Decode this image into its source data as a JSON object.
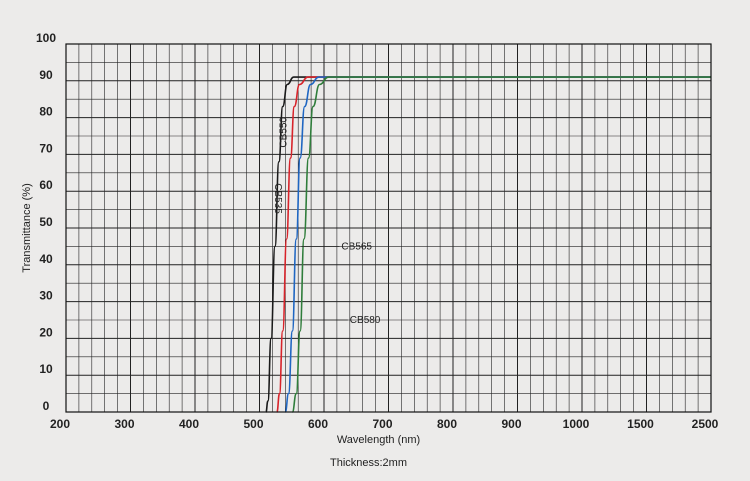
{
  "chart_data": {
    "type": "line",
    "xlabel": "Wavelength (nm)",
    "ylabel": "Transmittance (%)",
    "note": "Thickness:2mm",
    "x_ticks": [
      "200",
      "300",
      "400",
      "500",
      "600",
      "700",
      "800",
      "900",
      "1000",
      "1500",
      "2500"
    ],
    "y_ticks": [
      "0",
      "10",
      "20",
      "30",
      "40",
      "50",
      "60",
      "70",
      "80",
      "90",
      "100"
    ],
    "ylim": [
      0,
      100
    ],
    "grid": true,
    "series": [
      {
        "name": "CB535",
        "color": "#1a1a1a",
        "points": [
          [
            510,
            0
          ],
          [
            513,
            3
          ],
          [
            518,
            20
          ],
          [
            524,
            45
          ],
          [
            530,
            68
          ],
          [
            536,
            83
          ],
          [
            543,
            89
          ],
          [
            553,
            91
          ],
          [
            600,
            91
          ],
          [
            1000,
            91
          ],
          [
            2500,
            91
          ]
        ]
      },
      {
        "name": "CB550",
        "color": "#d8232a",
        "points": [
          [
            527,
            0
          ],
          [
            531,
            5
          ],
          [
            536,
            22
          ],
          [
            542,
            47
          ],
          [
            548,
            69
          ],
          [
            554,
            83
          ],
          [
            562,
            89
          ],
          [
            575,
            91
          ],
          [
            620,
            91
          ],
          [
            1000,
            91
          ],
          [
            2500,
            91
          ]
        ]
      },
      {
        "name": "CB565",
        "color": "#1f66c2",
        "points": [
          [
            540,
            0
          ],
          [
            545,
            5
          ],
          [
            551,
            22
          ],
          [
            557,
            47
          ],
          [
            563,
            69
          ],
          [
            570,
            83
          ],
          [
            579,
            89
          ],
          [
            592,
            91
          ],
          [
            640,
            91
          ],
          [
            1000,
            91
          ],
          [
            2500,
            91
          ]
        ]
      },
      {
        "name": "CB580",
        "color": "#2f7d3b",
        "points": [
          [
            551,
            0
          ],
          [
            557,
            5
          ],
          [
            563,
            22
          ],
          [
            569,
            47
          ],
          [
            576,
            69
          ],
          [
            583,
            83
          ],
          [
            593,
            89
          ],
          [
            607,
            91
          ],
          [
            660,
            91
          ],
          [
            1000,
            91
          ],
          [
            2500,
            91
          ]
        ]
      }
    ],
    "annotations": [
      {
        "series": "CB535",
        "text": "CB535",
        "x": 530,
        "y": 58
      },
      {
        "series": "CB550",
        "text": "CB550",
        "x": 550,
        "y": 76
      },
      {
        "series": "CB565",
        "text": "CB565",
        "x": 565,
        "y": 45
      },
      {
        "series": "CB580",
        "text": "CB580",
        "x": 578,
        "y": 25
      }
    ]
  }
}
